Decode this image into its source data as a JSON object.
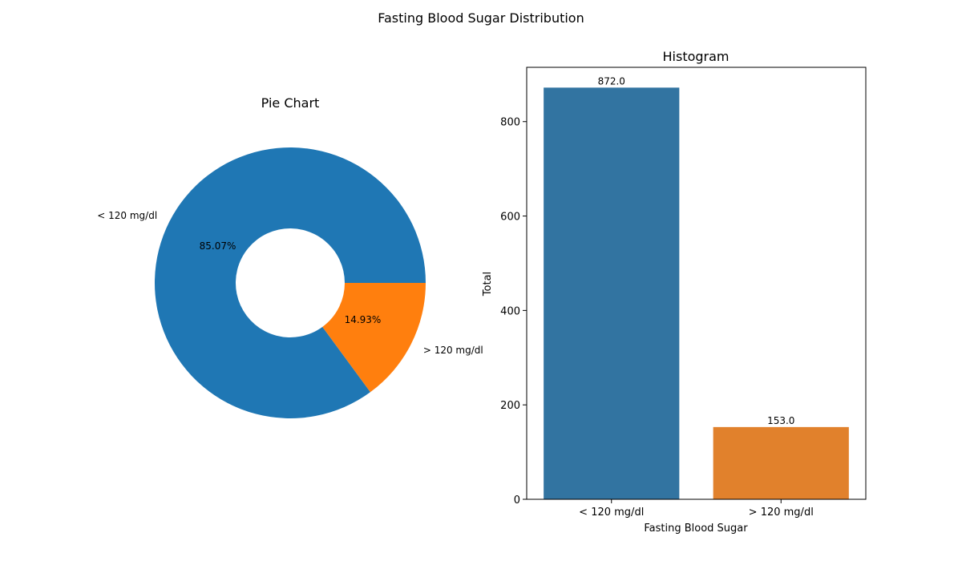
{
  "figure": {
    "title": "Fasting Blood Sugar Distribution"
  },
  "chart_data": [
    {
      "type": "pie",
      "subtype": "donut",
      "title": "Pie Chart",
      "labels": [
        "< 120 mg/dl",
        "> 120 mg/dl"
      ],
      "values": [
        872,
        153
      ],
      "percent_labels": [
        "85.07%",
        "14.93%"
      ],
      "colors": [
        "#1f77b4",
        "#ff7f0e"
      ]
    },
    {
      "type": "bar",
      "title": "Histogram",
      "categories": [
        "< 120 mg/dl",
        "> 120 mg/dl"
      ],
      "values": [
        872,
        153
      ],
      "value_labels": [
        "872.0",
        "153.0"
      ],
      "colors": [
        "#3274a1",
        "#e1812c"
      ],
      "xlabel": "Fasting Blood Sugar",
      "ylabel": "Total",
      "ylim": [
        0,
        915
      ],
      "yticks": [
        0,
        200,
        400,
        600,
        800
      ],
      "grid": false,
      "legend": "none"
    }
  ]
}
